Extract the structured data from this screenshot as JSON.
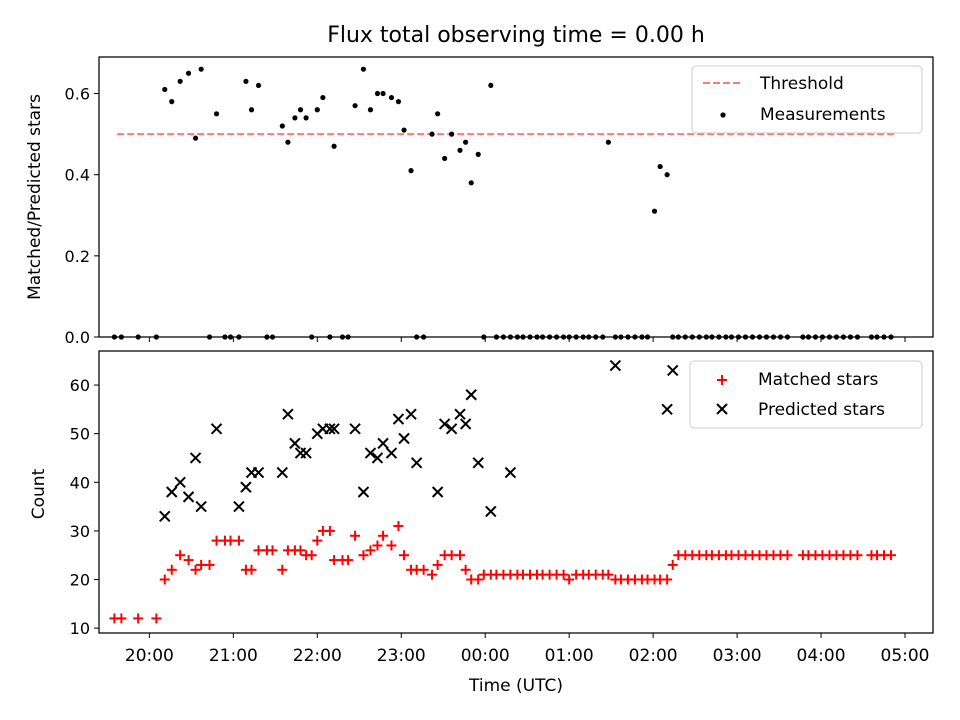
{
  "figure": {
    "title": "Flux total observing time = 0.00 h"
  },
  "chart_data": [
    {
      "type": "scatter",
      "panel": "top",
      "title": "Flux total observing time = 0.00 h",
      "xlabel": "",
      "ylabel": "Matched/Predicted stars",
      "ylim": [
        0,
        0.69
      ],
      "yticks": [
        0.0,
        0.2,
        0.4,
        0.6
      ],
      "ytick_labels": [
        "0.0",
        "0.2",
        "0.4",
        "0.6"
      ],
      "xlim": [
        "19:24",
        "05:20"
      ],
      "xticks": [
        "20:00",
        "21:00",
        "22:00",
        "23:00",
        "00:00",
        "01:00",
        "02:00",
        "03:00",
        "04:00",
        "05:00"
      ],
      "grid": false,
      "legend_position": "top-right",
      "series": [
        {
          "name": "Threshold",
          "style": "dashed-line",
          "color": "#ff7777",
          "x": [
            "19:37",
            "04:53"
          ],
          "y": [
            0.5,
            0.5
          ]
        },
        {
          "name": "Measurements",
          "style": "dot",
          "color": "#000000",
          "x": [
            "19:35",
            "19:40",
            "19:52",
            "20:05",
            "20:11",
            "20:16",
            "20:22",
            "20:28",
            "20:33",
            "20:37",
            "20:43",
            "20:48",
            "20:54",
            "20:58",
            "21:04",
            "21:09",
            "21:13",
            "21:18",
            "21:24",
            "21:28",
            "21:35",
            "21:39",
            "21:44",
            "21:48",
            "21:52",
            "21:56",
            "22:00",
            "22:04",
            "22:09",
            "22:12",
            "22:18",
            "22:22",
            "22:27",
            "22:33",
            "22:38",
            "22:43",
            "22:47",
            "22:53",
            "22:58",
            "23:02",
            "23:07",
            "23:11",
            "23:16",
            "23:22",
            "23:26",
            "23:31",
            "23:36",
            "23:42",
            "23:46",
            "23:50",
            "23:55",
            "23:59",
            "00:04",
            "00:08",
            "00:13",
            "00:18",
            "00:23",
            "00:27",
            "00:32",
            "00:37",
            "00:41",
            "00:46",
            "00:51",
            "00:56",
            "01:00",
            "01:05",
            "01:10",
            "01:14",
            "01:19",
            "01:24",
            "01:28",
            "01:33",
            "01:37",
            "01:42",
            "01:47",
            "01:52",
            "01:56",
            "02:01",
            "02:05",
            "02:10",
            "02:14",
            "02:18",
            "02:23",
            "02:28",
            "02:33",
            "02:38",
            "02:42",
            "02:47",
            "02:52",
            "02:56",
            "03:01",
            "03:06",
            "03:11",
            "03:16",
            "03:21",
            "03:26",
            "03:31",
            "03:36",
            "03:47",
            "03:51",
            "03:56",
            "04:01",
            "04:06",
            "04:11",
            "04:16",
            "04:21",
            "04:26",
            "04:36",
            "04:40",
            "04:45",
            "04:50"
          ],
          "y": [
            0.0,
            0.0,
            0.0,
            0.0,
            0.61,
            0.58,
            0.63,
            0.65,
            0.49,
            0.66,
            0.0,
            0.55,
            0.0,
            0.0,
            0.0,
            0.63,
            0.56,
            0.62,
            0.0,
            0.0,
            0.52,
            0.48,
            0.54,
            0.56,
            0.54,
            0.0,
            0.56,
            0.59,
            0.0,
            0.47,
            0.0,
            0.0,
            0.57,
            0.66,
            0.56,
            0.6,
            0.6,
            0.59,
            0.58,
            0.51,
            0.41,
            0.0,
            0.0,
            0.5,
            0.55,
            0.44,
            0.5,
            0.46,
            0.48,
            0.38,
            0.45,
            0.0,
            0.62,
            0.0,
            0.0,
            0.0,
            0.0,
            0.0,
            0.0,
            0.0,
            0.0,
            0.0,
            0.0,
            0.0,
            0.0,
            0.0,
            0.0,
            0.0,
            0.0,
            0.0,
            0.48,
            0.0,
            0.0,
            0.0,
            0.0,
            0.0,
            0.0,
            0.31,
            0.42,
            0.4,
            0.0,
            0.0,
            0.0,
            0.0,
            0.0,
            0.0,
            0.0,
            0.0,
            0.0,
            0.0,
            0.0,
            0.0,
            0.0,
            0.0,
            0.0,
            0.0,
            0.0,
            0.0,
            0.0,
            0.0,
            0.0,
            0.0,
            0.0,
            0.0,
            0.0,
            0.0,
            0.0,
            0.0,
            0.0,
            0.0,
            0.0
          ]
        }
      ]
    },
    {
      "type": "scatter",
      "panel": "bottom",
      "title": "",
      "xlabel": "Time (UTC)",
      "ylabel": "Count",
      "ylim": [
        9,
        67
      ],
      "yticks": [
        10,
        20,
        30,
        40,
        50,
        60
      ],
      "ytick_labels": [
        "10",
        "20",
        "30",
        "40",
        "50",
        "60"
      ],
      "xlim": [
        "19:24",
        "05:20"
      ],
      "xticks": [
        "20:00",
        "21:00",
        "22:00",
        "23:00",
        "00:00",
        "01:00",
        "02:00",
        "03:00",
        "04:00",
        "05:00"
      ],
      "xtick_labels": [
        "20:00",
        "21:00",
        "22:00",
        "23:00",
        "00:00",
        "01:00",
        "02:00",
        "03:00",
        "04:00",
        "05:00"
      ],
      "grid": false,
      "legend_position": "top-right",
      "series": [
        {
          "name": "Matched stars",
          "style": "plus",
          "color": "#ff0000",
          "x": [
            "19:35",
            "19:40",
            "19:52",
            "20:05",
            "20:11",
            "20:16",
            "20:22",
            "20:28",
            "20:33",
            "20:37",
            "20:43",
            "20:48",
            "20:54",
            "20:58",
            "21:04",
            "21:09",
            "21:13",
            "21:18",
            "21:24",
            "21:28",
            "21:35",
            "21:39",
            "21:44",
            "21:48",
            "21:52",
            "21:56",
            "22:00",
            "22:04",
            "22:09",
            "22:12",
            "22:18",
            "22:22",
            "22:27",
            "22:33",
            "22:38",
            "22:43",
            "22:47",
            "22:53",
            "22:58",
            "23:02",
            "23:07",
            "23:11",
            "23:16",
            "23:22",
            "23:26",
            "23:31",
            "23:36",
            "23:42",
            "23:46",
            "23:50",
            "23:55",
            "23:59",
            "00:04",
            "00:08",
            "00:13",
            "00:18",
            "00:23",
            "00:27",
            "00:32",
            "00:37",
            "00:41",
            "00:46",
            "00:51",
            "00:56",
            "01:00",
            "01:05",
            "01:10",
            "01:14",
            "01:19",
            "01:24",
            "01:28",
            "01:33",
            "01:37",
            "01:42",
            "01:47",
            "01:52",
            "01:56",
            "02:01",
            "02:05",
            "02:10",
            "02:14",
            "02:18",
            "02:23",
            "02:28",
            "02:33",
            "02:38",
            "02:42",
            "02:47",
            "02:52",
            "02:56",
            "03:01",
            "03:06",
            "03:11",
            "03:16",
            "03:21",
            "03:26",
            "03:31",
            "03:36",
            "03:47",
            "03:51",
            "03:56",
            "04:01",
            "04:06",
            "04:11",
            "04:16",
            "04:21",
            "04:26",
            "04:36",
            "04:40",
            "04:45",
            "04:50"
          ],
          "y": [
            12,
            12,
            12,
            12,
            20,
            22,
            25,
            24,
            22,
            23,
            23,
            28,
            28,
            28,
            28,
            22,
            22,
            26,
            26,
            26,
            22,
            26,
            26,
            26,
            25,
            25,
            28,
            30,
            30,
            24,
            24,
            24,
            29,
            25,
            26,
            27,
            29,
            27,
            31,
            25,
            22,
            22,
            22,
            21,
            23,
            25,
            25,
            25,
            22,
            20,
            20,
            21,
            21,
            21,
            21,
            21,
            21,
            21,
            21,
            21,
            21,
            21,
            21,
            21,
            20,
            21,
            21,
            21,
            21,
            21,
            21,
            20,
            20,
            20,
            20,
            20,
            20,
            20,
            20,
            20,
            23,
            25,
            25,
            25,
            25,
            25,
            25,
            25,
            25,
            25,
            25,
            25,
            25,
            25,
            25,
            25,
            25,
            25,
            25,
            25,
            25,
            25,
            25,
            25,
            25,
            25,
            25,
            25,
            25,
            25,
            25
          ]
        },
        {
          "name": "Predicted stars",
          "style": "x",
          "color": "#000000",
          "x": [
            "20:11",
            "20:16",
            "20:22",
            "20:28",
            "20:33",
            "20:37",
            "20:48",
            "21:04",
            "21:09",
            "21:13",
            "21:18",
            "21:35",
            "21:39",
            "21:44",
            "21:48",
            "21:52",
            "22:00",
            "22:04",
            "22:09",
            "22:12",
            "22:27",
            "22:33",
            "22:38",
            "22:43",
            "22:47",
            "22:53",
            "22:58",
            "23:02",
            "23:07",
            "23:11",
            "23:26",
            "23:31",
            "23:36",
            "23:42",
            "23:46",
            "23:50",
            "23:55",
            "00:04",
            "00:18",
            "01:33",
            "02:10",
            "02:14",
            "02:18"
          ],
          "y": [
            33,
            38,
            40,
            37,
            45,
            35,
            51,
            35,
            39,
            42,
            42,
            42,
            54,
            48,
            46,
            46,
            50,
            51,
            51,
            51,
            51,
            38,
            46,
            45,
            48,
            46,
            53,
            49,
            54,
            44,
            38,
            52,
            51,
            54,
            52,
            58,
            44,
            34,
            42,
            64,
            55,
            63,
            null
          ]
        }
      ]
    }
  ]
}
